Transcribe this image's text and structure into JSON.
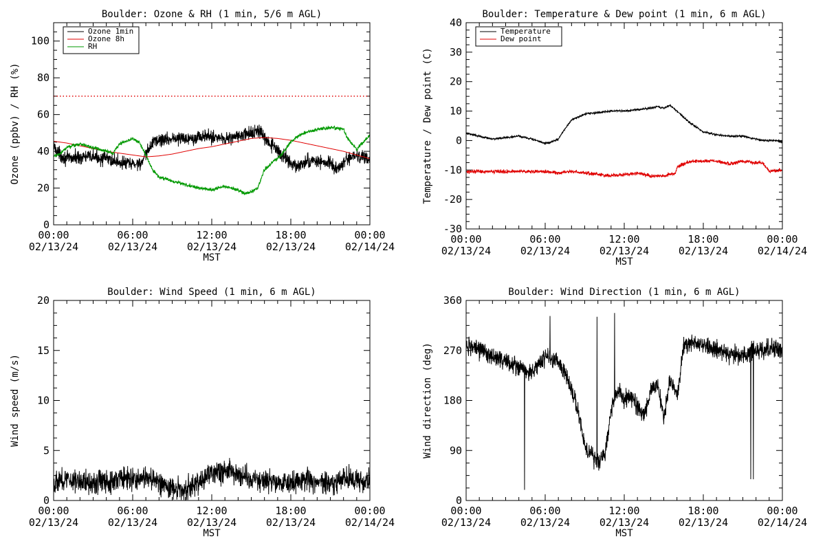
{
  "colors": {
    "black": "#000000",
    "red": "#e00000",
    "green": "#009900",
    "refline": "#e00000"
  },
  "x_axis": {
    "tick_times": [
      "00:00",
      "06:00",
      "12:00",
      "18:00",
      "00:00"
    ],
    "tick_dates": [
      "02/13/24",
      "02/13/24",
      "02/13/24",
      "02/13/24",
      "02/14/24"
    ],
    "label": "MST",
    "range_hours": [
      0,
      24
    ]
  },
  "chart_data": [
    {
      "type": "line",
      "title": "Boulder: Ozone & RH (1 min, 5/6 m AGL)",
      "ylabel": "Ozone (ppbv) / RH (%)",
      "ylim": [
        0,
        110
      ],
      "yticks": [
        0,
        20,
        40,
        60,
        80,
        100
      ],
      "xlabel": "MST",
      "legend_position": "top-left",
      "reference_line": {
        "y": 70,
        "style": "dotted",
        "color": "#e00000"
      },
      "series": [
        {
          "name": "Ozone 1min",
          "color": "#000000",
          "noise": 3.2,
          "x": [
            0,
            0.5,
            1,
            2,
            3,
            4,
            5,
            6,
            6.8,
            7,
            7.3,
            7.6,
            8,
            9,
            10,
            11,
            12,
            13,
            14,
            15,
            15.5,
            15.8,
            16,
            16.5,
            17,
            17.5,
            18,
            18.5,
            19,
            20,
            21,
            21.5,
            22,
            23,
            24
          ],
          "y": [
            43,
            38,
            36,
            37,
            37,
            36,
            34,
            33,
            34,
            38,
            42,
            46,
            46,
            47,
            47,
            48,
            48,
            47,
            48,
            50,
            51,
            50,
            46,
            44,
            40,
            37,
            34,
            31,
            34,
            35,
            33,
            30,
            34,
            38,
            35
          ]
        },
        {
          "name": "Ozone 8h",
          "color": "#e00000",
          "noise": 0,
          "x": [
            0,
            1,
            2,
            3,
            4,
            5,
            6,
            7,
            8,
            9,
            10,
            11,
            12,
            13,
            14,
            15,
            16,
            17,
            18,
            19,
            20,
            21,
            22,
            23,
            24
          ],
          "y": [
            45.5,
            44.5,
            43,
            41.5,
            40,
            39,
            38,
            37,
            37.5,
            38.5,
            40,
            41.5,
            42.5,
            44,
            45.5,
            47,
            47.5,
            47,
            46,
            44.5,
            43,
            41.5,
            40,
            38,
            36
          ]
        },
        {
          "name": "RH",
          "color": "#009900",
          "noise": 0.8,
          "x": [
            0,
            0.5,
            1,
            2,
            3,
            4,
            4.5,
            5,
            6,
            6.5,
            7,
            7.5,
            8,
            9,
            10,
            11,
            12,
            13,
            14,
            14.5,
            15,
            15.5,
            16,
            16.3,
            16.7,
            17,
            17.5,
            18,
            18.5,
            19,
            20,
            21,
            22,
            22.3,
            22.7,
            23,
            23.5,
            24
          ],
          "y": [
            37,
            39,
            42,
            44,
            42,
            40,
            39,
            44,
            47,
            45,
            38,
            30,
            26,
            24,
            22,
            20,
            19,
            21,
            19,
            17,
            18,
            20,
            30,
            32,
            35,
            36,
            40,
            45,
            48,
            50,
            52,
            53,
            52,
            47,
            44,
            41,
            45,
            49
          ]
        }
      ]
    },
    {
      "type": "line",
      "title": "Boulder: Temperature & Dew point (1 min, 6 m AGL)",
      "ylabel": "Temperature / Dew point (C)",
      "ylim": [
        -30,
        40
      ],
      "yticks": [
        -30,
        -20,
        -10,
        0,
        10,
        20,
        30,
        40
      ],
      "xlabel": "MST",
      "legend_position": "top-left",
      "series": [
        {
          "name": "Temperature",
          "color": "#000000",
          "noise": 0.3,
          "x": [
            0,
            1,
            2,
            3,
            4,
            5,
            6,
            6.5,
            7,
            7.5,
            8,
            9,
            10,
            11,
            12,
            13,
            14,
            14.5,
            15,
            15.5,
            16,
            16.5,
            17,
            18,
            19,
            20,
            21,
            22,
            22.5,
            23,
            23.5,
            24
          ],
          "y": [
            2.5,
            1.5,
            0.5,
            1,
            1.5,
            0.5,
            -1,
            -0.5,
            0.5,
            4,
            7,
            9,
            9.5,
            10,
            10,
            10.5,
            11,
            11.5,
            11,
            12,
            10,
            8,
            6,
            3,
            2,
            1.5,
            1.5,
            0.5,
            0,
            0,
            0,
            -0.5
          ]
        },
        {
          "name": "Dew point",
          "color": "#e00000",
          "noise": 0.5,
          "x": [
            0,
            1,
            2,
            3,
            4,
            5,
            6,
            7,
            8,
            9,
            10,
            11,
            12,
            13,
            14,
            15,
            15.9,
            16,
            16.5,
            17,
            18,
            19,
            20,
            21,
            22,
            22.5,
            23,
            24
          ],
          "y": [
            -10.5,
            -10.5,
            -10.5,
            -10.5,
            -10.5,
            -10.5,
            -10.5,
            -11,
            -10.5,
            -11,
            -11.5,
            -12,
            -11.5,
            -11,
            -12,
            -12,
            -11,
            -9,
            -8,
            -7,
            -7,
            -7,
            -8,
            -7,
            -7.5,
            -7.5,
            -10.5,
            -10
          ]
        }
      ]
    },
    {
      "type": "line",
      "title": "Boulder: Wind Speed (1 min, 6 m AGL)",
      "ylabel": "Wind speed (m/s)",
      "ylim": [
        0,
        20
      ],
      "yticks": [
        0,
        5,
        10,
        15,
        20
      ],
      "xlabel": "MST",
      "series": [
        {
          "color": "#000000",
          "noise": 1.0,
          "x": [
            0,
            1,
            2,
            3,
            4,
            5,
            6,
            7,
            8,
            9,
            10,
            11,
            12,
            13,
            14,
            15,
            16,
            17,
            18,
            19,
            20,
            21,
            22,
            23,
            24
          ],
          "y": [
            1.9,
            2.1,
            2,
            1.8,
            1.9,
            2.2,
            2.1,
            2.3,
            1.8,
            1.2,
            1.0,
            1.8,
            2.8,
            3.0,
            2.7,
            2.3,
            2.0,
            1.8,
            2.0,
            2.1,
            2.0,
            1.6,
            2.1,
            2.0,
            2.0
          ]
        }
      ]
    },
    {
      "type": "line",
      "title": "Boulder: Wind Direction (1 min, 6 m AGL)",
      "ylabel": "Wind direction (deg)",
      "ylim": [
        0,
        360
      ],
      "yticks": [
        0,
        90,
        180,
        270,
        360
      ],
      "xlabel": "MST",
      "series": [
        {
          "color": "#000000",
          "noise": 14,
          "x": [
            0,
            1,
            2,
            3,
            4,
            5,
            6,
            7,
            7.5,
            8,
            8.5,
            9,
            9.5,
            10,
            10.5,
            11,
            11.5,
            12,
            12.5,
            13,
            13.5,
            14,
            14.5,
            15,
            15.5,
            16,
            16.5,
            17,
            18,
            19,
            20,
            21,
            22,
            23,
            24
          ],
          "y": [
            280,
            270,
            260,
            250,
            240,
            230,
            260,
            250,
            230,
            200,
            160,
            100,
            80,
            70,
            80,
            160,
            200,
            180,
            190,
            170,
            150,
            200,
            210,
            150,
            220,
            180,
            280,
            285,
            280,
            270,
            265,
            260,
            270,
            275,
            270
          ]
        }
      ]
    }
  ]
}
